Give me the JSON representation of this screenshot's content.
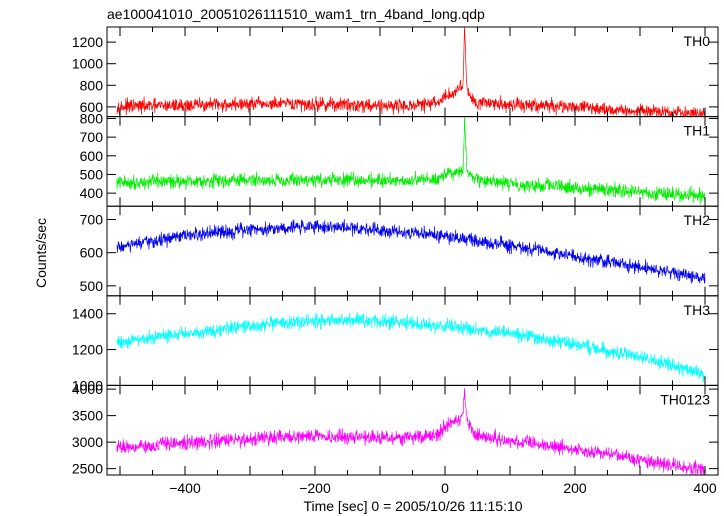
{
  "chart_data": {
    "type": "line",
    "title": "ae100041010_20051026111510_wam1_trn_4band_long.qdp",
    "xlabel": "Time [sec] 0 = 2005/10/26 11:15:10",
    "ylabel": "Counts/sec",
    "xlim": [
      -520,
      420
    ],
    "x_ticks": [
      "−400",
      "−200",
      "0",
      "200",
      "400"
    ],
    "grid": false,
    "panels": [
      {
        "name": "TH0",
        "color": "#ff0000",
        "ylim": [
          510,
          1340
        ],
        "y_ticks": [
          "600",
          "800",
          "1000",
          "1200"
        ],
        "x": [
          -505,
          -400,
          -300,
          -200,
          -100,
          -50,
          -10,
          0,
          10,
          20,
          28,
          30,
          34,
          45,
          100,
          200,
          300,
          350,
          400
        ],
        "y": [
          600,
          615,
          625,
          625,
          615,
          610,
          640,
          700,
          720,
          760,
          820,
          1340,
          760,
          650,
          620,
          600,
          560,
          545,
          535
        ]
      },
      {
        "name": "TH1",
        "color": "#00ee00",
        "ylim": [
          330,
          810
        ],
        "y_ticks": [
          "400",
          "500",
          "600",
          "700",
          "800"
        ],
        "x": [
          -505,
          -400,
          -300,
          -200,
          -100,
          -50,
          -10,
          0,
          10,
          20,
          28,
          30,
          34,
          45,
          100,
          200,
          300,
          350,
          400
        ],
        "y": [
          455,
          465,
          470,
          470,
          470,
          468,
          480,
          510,
          500,
          505,
          520,
          800,
          510,
          470,
          450,
          430,
          405,
          395,
          385
        ]
      },
      {
        "name": "TH2",
        "color": "#0000ee",
        "ylim": [
          470,
          740
        ],
        "y_ticks": [
          "500",
          "600",
          "700"
        ],
        "x": [
          -505,
          -400,
          -300,
          -200,
          -100,
          0,
          100,
          200,
          300,
          350,
          400
        ],
        "y": [
          615,
          650,
          670,
          680,
          670,
          650,
          620,
          590,
          555,
          540,
          525
        ]
      },
      {
        "name": "TH3",
        "color": "#00ffff",
        "ylim": [
          1000,
          1500
        ],
        "y_ticks": [
          "1000",
          "1200",
          "1400"
        ],
        "x": [
          -505,
          -400,
          -300,
          -200,
          -100,
          0,
          100,
          200,
          300,
          350,
          400
        ],
        "y": [
          1240,
          1290,
          1330,
          1360,
          1360,
          1330,
          1290,
          1230,
          1160,
          1110,
          1060
        ]
      },
      {
        "name": "TH0123",
        "color": "#ff00ff",
        "ylim": [
          2380,
          4070
        ],
        "y_ticks": [
          "2500",
          "3000",
          "3500",
          "4000"
        ],
        "x": [
          -505,
          -400,
          -300,
          -200,
          -100,
          -50,
          -10,
          0,
          10,
          20,
          28,
          30,
          34,
          45,
          100,
          200,
          300,
          350,
          400
        ],
        "y": [
          2900,
          2980,
          3060,
          3110,
          3090,
          3080,
          3150,
          3300,
          3350,
          3400,
          3500,
          4050,
          3400,
          3150,
          3010,
          2880,
          2660,
          2560,
          2480
        ]
      }
    ]
  }
}
